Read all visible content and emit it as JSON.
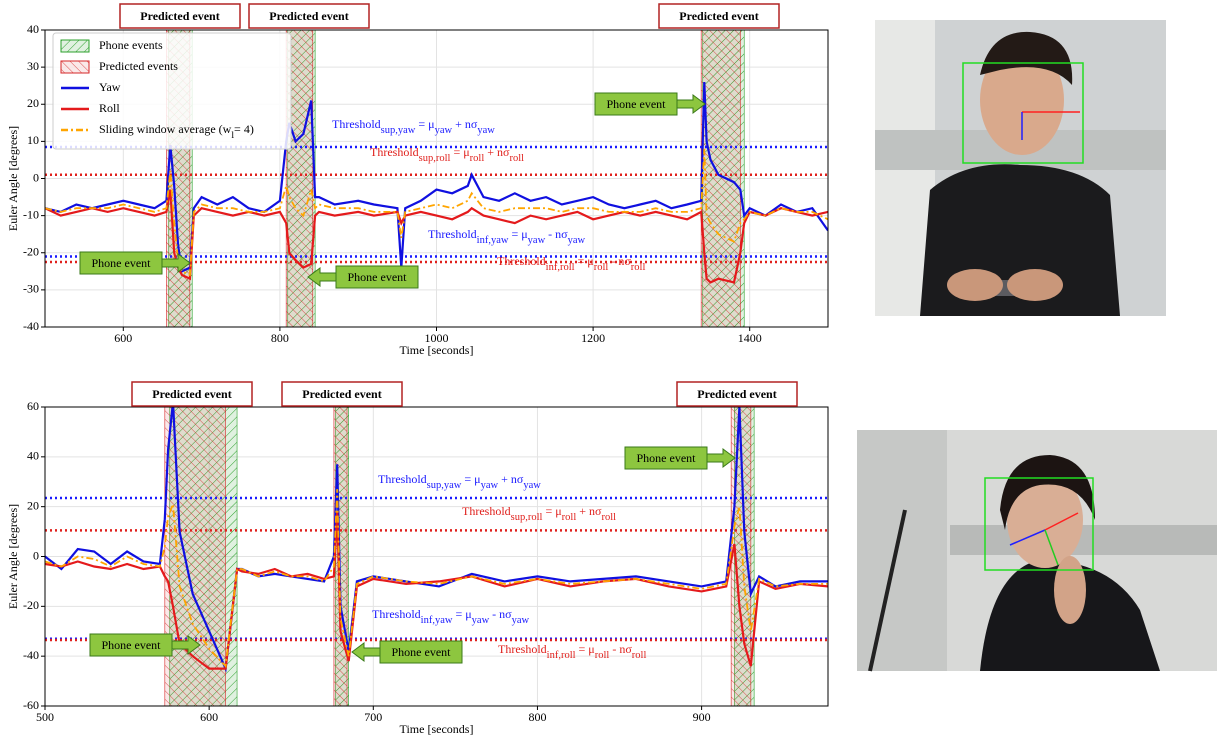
{
  "chart_data": [
    {
      "type": "line",
      "xlabel": "Time [seconds]",
      "ylabel": "Euler Angle [degrees]",
      "xlim": [
        500,
        1500
      ],
      "ylim": [
        -40,
        40
      ],
      "xticks": [
        600,
        800,
        1000,
        1200,
        1400
      ],
      "yticks": [
        40,
        30,
        20,
        10,
        0,
        -10,
        -20,
        -30,
        -40
      ],
      "grid": true,
      "legend": "upper left",
      "x": [
        500,
        520,
        540,
        560,
        580,
        600,
        620,
        640,
        655,
        660,
        665,
        670,
        675,
        685,
        690,
        700,
        720,
        740,
        760,
        780,
        800,
        808,
        812,
        820,
        830,
        840,
        845,
        850,
        870,
        900,
        920,
        950,
        955,
        960,
        980,
        1000,
        1020,
        1040,
        1045,
        1060,
        1080,
        1100,
        1120,
        1140,
        1160,
        1180,
        1200,
        1220,
        1240,
        1260,
        1280,
        1300,
        1320,
        1338,
        1342,
        1345,
        1350,
        1360,
        1380,
        1388,
        1393,
        1400,
        1420,
        1440,
        1460,
        1480,
        1500
      ],
      "series": [
        {
          "name": [
            "Yaw"
          ],
          "color": "#1010e0",
          "values": [
            -8,
            -9,
            -7,
            -8,
            -7,
            -6,
            -7,
            -8,
            -6,
            9,
            -2,
            -18,
            -25,
            -24,
            -8,
            -5,
            -7,
            -5,
            -8,
            -9,
            -6,
            10,
            15,
            10,
            12,
            21,
            -5,
            -5,
            -7,
            -6,
            -7,
            -8,
            -24,
            -8,
            -6,
            -3,
            -4,
            -2,
            1,
            -5,
            -6,
            -4,
            -6,
            -5,
            -7,
            -6,
            -5,
            -7,
            -8,
            -7,
            -6,
            -8,
            -7,
            -6,
            26,
            10,
            5,
            1,
            -1,
            -3,
            -10,
            -8,
            -10,
            -7,
            -9,
            -8,
            -14
          ]
        },
        {
          "name": [
            "Roll"
          ],
          "color": "#e41a1c",
          "values": [
            -8,
            -10,
            -9,
            -8,
            -9,
            -8,
            -9,
            -10,
            -9,
            -3,
            -20,
            -24,
            -26,
            -27,
            -10,
            -8,
            -9,
            -10,
            -9,
            -10,
            -9,
            -12,
            -20,
            -22,
            -24,
            -23,
            -10,
            -9,
            -10,
            -9,
            -10,
            -9,
            -12,
            -10,
            -9,
            -10,
            -11,
            -9,
            -8,
            -10,
            -11,
            -12,
            -10,
            -11,
            -10,
            -9,
            -11,
            -10,
            -9,
            -10,
            -9,
            -10,
            -11,
            -9,
            -20,
            -27,
            -28,
            -27,
            -28,
            -20,
            -12,
            -9,
            -10,
            -8,
            -9,
            -10,
            -9
          ]
        },
        {
          "name": [
            "Sliding window average (w",
            "l",
            "= 4)"
          ],
          "color": "#ffa500",
          "dash": "dashdot",
          "values": [
            -8,
            -9,
            -8,
            -8,
            -8,
            -7,
            -8,
            -9,
            -8,
            2,
            -12,
            -22,
            -25,
            -26,
            -9,
            -7,
            -8,
            -8,
            -9,
            -9,
            -8,
            -2,
            -5,
            -8,
            -10,
            -3,
            -8,
            -7,
            -8,
            -8,
            -9,
            -9,
            -16,
            -9,
            -8,
            -7,
            -8,
            -6,
            -4,
            -8,
            -9,
            -8,
            -8,
            -8,
            -9,
            -8,
            -8,
            -9,
            -9,
            -9,
            -8,
            -9,
            -9,
            -8,
            8,
            -10,
            -12,
            -15,
            -17,
            -12,
            -11,
            -9,
            -10,
            -8,
            -9,
            -9,
            -11
          ]
        }
      ],
      "phone_events": {
        "name": "Phone events",
        "color": "#2ca02c",
        "spans": [
          [
            658,
            688
          ],
          [
            810,
            845
          ],
          [
            1340,
            1393
          ]
        ]
      },
      "predicted_events": {
        "name": "Predicted events",
        "color": "#d62728",
        "spans": [
          [
            655,
            685
          ],
          [
            808,
            842
          ],
          [
            1338,
            1388
          ]
        ]
      },
      "thresholds": [
        {
          "value": 8.5,
          "color": "#1a1aff",
          "segments": [
            "Threshold",
            "sup,yaw",
            " = μ",
            "yaw",
            " + nσ",
            "yaw"
          ]
        },
        {
          "value": 1,
          "color": "#e0201c",
          "segments": [
            "Threshold",
            "sup,roll",
            " = μ",
            "roll",
            " + nσ",
            "roll"
          ]
        },
        {
          "value": -21,
          "color": "#1a1aff",
          "segments": [
            "Threshold",
            "inf,yaw",
            " = μ",
            "yaw",
            " - nσ",
            "yaw"
          ]
        },
        {
          "value": -22.5,
          "color": "#e0201c",
          "segments": [
            "Threshold",
            "inf,roll",
            " = μ",
            "roll",
            " - nσ",
            "roll"
          ]
        }
      ],
      "predicted_labels": [
        "Predicted event",
        "Predicted event",
        "Predicted event"
      ],
      "phone_labels": [
        "Phone event",
        "Phone event",
        "Phone event"
      ]
    },
    {
      "type": "line",
      "xlabel": "Time [seconds]",
      "ylabel": "Euler Angle [degrees]",
      "xlim": [
        500,
        977
      ],
      "ylim": [
        -60,
        60
      ],
      "xticks": [
        500,
        600,
        700,
        800,
        900
      ],
      "yticks": [
        60,
        40,
        20,
        0,
        -20,
        -40,
        -60
      ],
      "grid": true,
      "x": [
        500,
        510,
        520,
        530,
        540,
        550,
        560,
        570,
        573,
        575,
        578,
        582,
        590,
        600,
        610,
        617,
        620,
        630,
        640,
        650,
        660,
        670,
        676,
        678,
        680,
        685,
        690,
        700,
        720,
        740,
        760,
        780,
        800,
        820,
        840,
        860,
        880,
        900,
        915,
        920,
        923,
        926,
        930,
        935,
        945,
        960,
        977
      ],
      "series": [
        {
          "name": [
            "Yaw"
          ],
          "color": "#1010e0",
          "values": [
            0,
            -5,
            3,
            2,
            -3,
            2,
            -2,
            -3,
            15,
            43,
            62,
            10,
            -15,
            -30,
            -45,
            -5,
            -5,
            -8,
            -7,
            -8,
            -9,
            -10,
            0,
            37,
            -20,
            -38,
            -10,
            -8,
            -10,
            -12,
            -7,
            -10,
            -8,
            -10,
            -9,
            -8,
            -10,
            -12,
            -10,
            20,
            60,
            10,
            -15,
            -8,
            -12,
            -10,
            -10
          ]
        },
        {
          "name": [
            "Roll"
          ],
          "color": "#e41a1c",
          "values": [
            -3,
            -4,
            -2,
            -4,
            -5,
            -3,
            -5,
            -4,
            -8,
            -10,
            -20,
            -35,
            -40,
            -45,
            -45,
            -5,
            -6,
            -7,
            -5,
            -8,
            -7,
            -9,
            -8,
            18,
            -30,
            -42,
            -12,
            -9,
            -11,
            -10,
            -8,
            -12,
            -9,
            -12,
            -10,
            -9,
            -12,
            -14,
            -12,
            5,
            -20,
            -35,
            -44,
            -10,
            -13,
            -11,
            -12
          ]
        },
        {
          "name": [
            "Sliding window average (w",
            "l",
            "= 4)"
          ],
          "color": "#ffa500",
          "dash": "dashdot",
          "values": [
            -2,
            -4,
            0,
            -1,
            -4,
            0,
            -3,
            -4,
            4,
            16,
            21,
            -12,
            -27,
            -37,
            -44,
            -5,
            -5,
            -8,
            -6,
            -8,
            -8,
            -10,
            -4,
            27,
            -25,
            -40,
            -11,
            -8,
            -10,
            -11,
            -8,
            -11,
            -9,
            -11,
            -10,
            -9,
            -11,
            -13,
            -11,
            12,
            20,
            -12,
            -30,
            -9,
            -12,
            -11,
            -11
          ]
        }
      ],
      "phone_events": {
        "color": "#2ca02c",
        "spans": [
          [
            576,
            617
          ],
          [
            677,
            685
          ],
          [
            920,
            932
          ]
        ]
      },
      "predicted_events": {
        "color": "#d62728",
        "spans": [
          [
            573,
            610
          ],
          [
            676,
            684
          ],
          [
            918,
            930
          ]
        ]
      },
      "thresholds": [
        {
          "value": 23.5,
          "color": "#1a1aff",
          "segments": [
            "Threshold",
            "sup,yaw",
            " = μ",
            "yaw",
            " + nσ",
            "yaw"
          ]
        },
        {
          "value": 10.5,
          "color": "#e0201c",
          "segments": [
            "Threshold",
            "sup,roll",
            " = μ",
            "roll",
            " + nσ",
            "roll"
          ]
        },
        {
          "value": -33,
          "color": "#1a1aff",
          "segments": [
            "Threshold",
            "inf,yaw",
            " = μ",
            "yaw",
            " - nσ",
            "yaw"
          ]
        },
        {
          "value": -33.5,
          "color": "#e0201c",
          "segments": [
            "Threshold",
            "inf,roll",
            " = μ",
            "roll",
            " - nσ",
            "roll"
          ]
        }
      ],
      "predicted_labels": [
        "Predicted event",
        "Predicted event",
        "Predicted event"
      ],
      "phone_labels": [
        "Phone event",
        "Phone event",
        "Phone event"
      ]
    }
  ]
}
